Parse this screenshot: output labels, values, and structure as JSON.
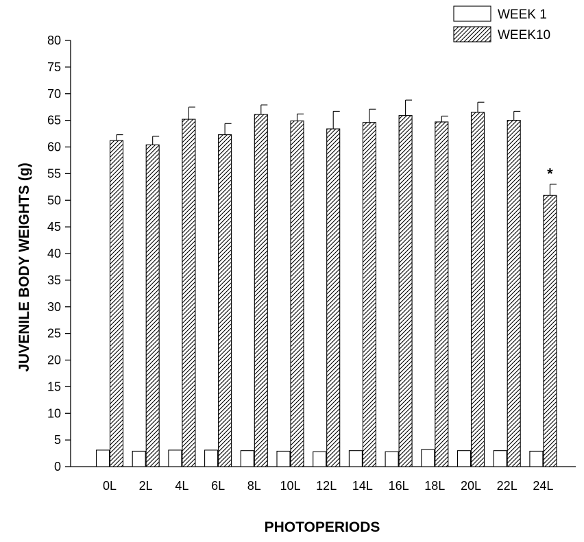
{
  "chart_data": {
    "type": "bar",
    "xlabel": "PHOTOPERIODS",
    "ylabel": "JUVENILE BODY WEIGHTS (g)",
    "ylim": [
      0,
      80
    ],
    "yticks": [
      0,
      5,
      10,
      15,
      20,
      25,
      30,
      35,
      40,
      45,
      50,
      55,
      60,
      65,
      70,
      75,
      80
    ],
    "categories": [
      "0L",
      "2L",
      "4L",
      "6L",
      "8L",
      "10L",
      "12L",
      "14L",
      "16L",
      "18L",
      "20L",
      "22L",
      "24L"
    ],
    "legend_position": "top-right",
    "grid": false,
    "series": [
      {
        "name": "WEEK 1",
        "pattern": "open",
        "values": [
          3.1,
          2.9,
          3.1,
          3.1,
          3.0,
          2.9,
          2.8,
          3.0,
          2.8,
          3.2,
          3.0,
          3.0,
          2.9
        ],
        "errors": [
          0,
          0,
          0,
          0,
          0,
          0,
          0,
          0,
          0,
          0,
          0,
          0,
          0
        ]
      },
      {
        "name": "WEEK10",
        "pattern": "hatched",
        "values": [
          61.2,
          60.4,
          65.2,
          62.3,
          66.1,
          64.9,
          63.4,
          64.6,
          65.9,
          64.7,
          66.5,
          65.0,
          50.9
        ],
        "errors": [
          1.1,
          1.6,
          2.3,
          2.1,
          1.8,
          1.3,
          3.3,
          2.5,
          2.9,
          1.1,
          1.9,
          1.7,
          2.1
        ]
      }
    ],
    "annotations": [
      {
        "category": "24L",
        "series": "WEEK10",
        "text": "*"
      }
    ],
    "colors": {
      "bar_stroke": "#000000",
      "hatch": "#000000",
      "background": "#ffffff"
    }
  }
}
